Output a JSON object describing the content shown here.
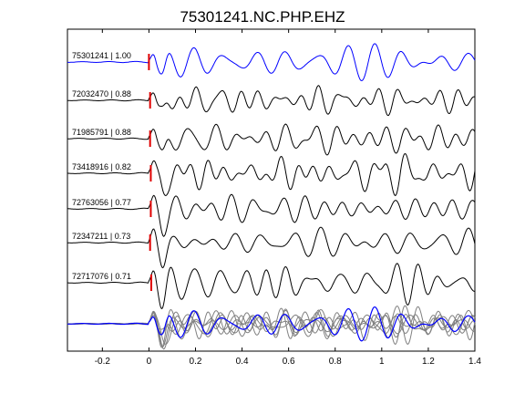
{
  "chart_data": {
    "type": "line",
    "title": "75301241.NC.PHP.EHZ",
    "xlabel": "",
    "ylabel": "",
    "xlim": [
      -0.35,
      1.4
    ],
    "grid": false,
    "x_ticks": [
      {
        "value": -0.2,
        "label": "-0.2"
      },
      {
        "value": 0,
        "label": "0"
      },
      {
        "value": 0.2,
        "label": "0.2"
      },
      {
        "value": 0.4,
        "label": "0.4"
      },
      {
        "value": 0.6,
        "label": "0.6"
      },
      {
        "value": 0.8,
        "label": "0.8"
      },
      {
        "value": 1.0,
        "label": "1"
      },
      {
        "value": 1.2,
        "label": "1.2"
      },
      {
        "value": 1.4,
        "label": "1.4"
      }
    ],
    "series": [
      {
        "name": "75301241 | 1.00",
        "color": "#0000ff",
        "pick_time": 0.0
      },
      {
        "name": "72032470 | 0.88",
        "color": "#000000",
        "pick_time": 0.005
      },
      {
        "name": "71985791 | 0.88",
        "color": "#000000",
        "pick_time": 0.005
      },
      {
        "name": "73418916 | 0.82",
        "color": "#000000",
        "pick_time": 0.008
      },
      {
        "name": "72763056 | 0.77",
        "color": "#000000",
        "pick_time": 0.008
      },
      {
        "name": "72347211 | 0.73",
        "color": "#000000",
        "pick_time": 0.005
      },
      {
        "name": "72717076 | 0.71",
        "color": "#000000",
        "pick_time": 0.01
      }
    ],
    "stack": {
      "overlay_colors": [
        "#808080",
        "#0000ff"
      ]
    },
    "pick_color": "#e00000"
  }
}
